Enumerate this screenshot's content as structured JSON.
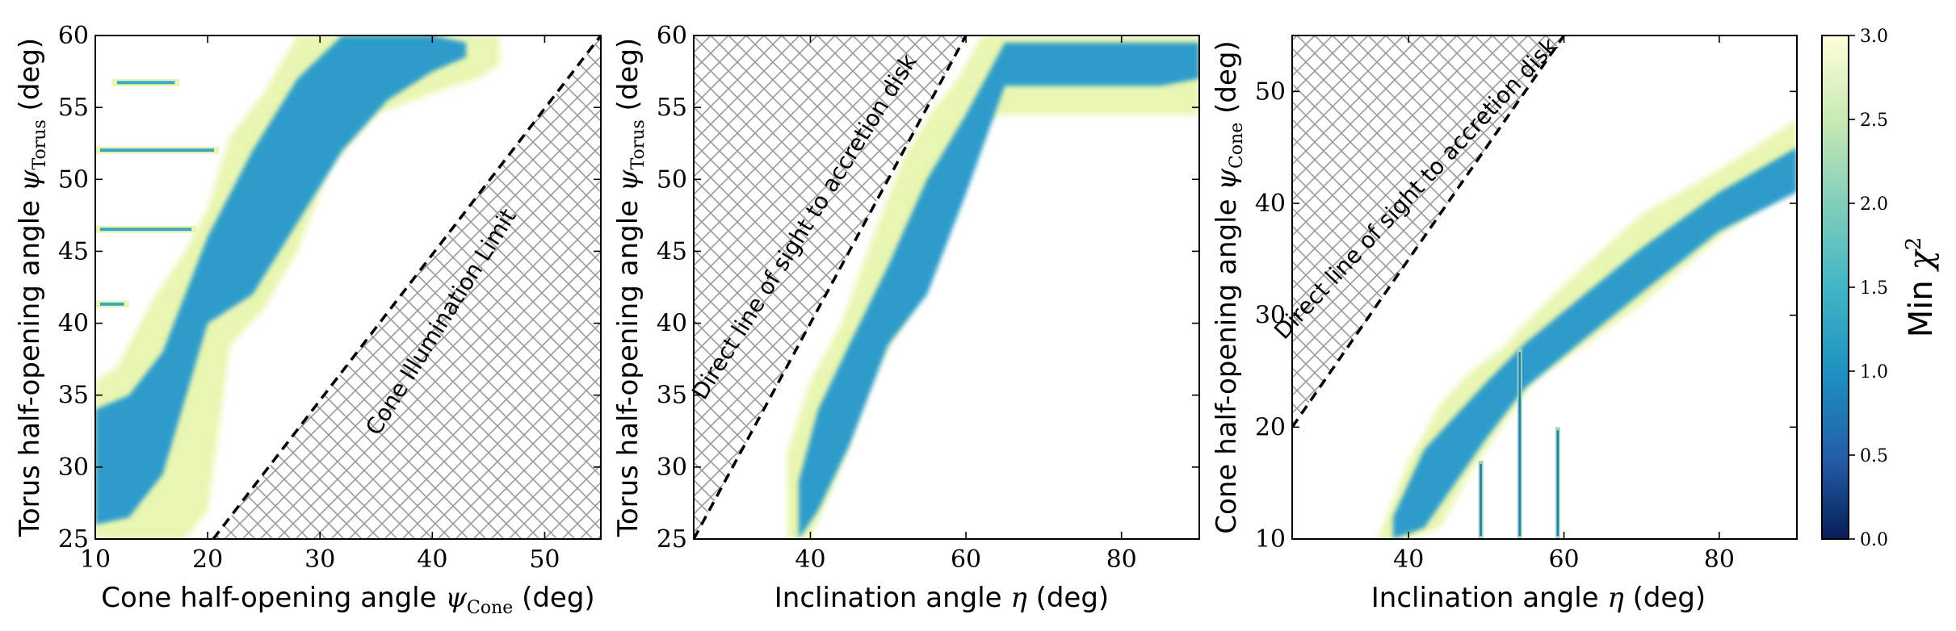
{
  "chart_data": [
    {
      "type": "heatmap",
      "xlabel": "Cone half-opening angle ψ_Cone (deg)",
      "ylabel": "Torus half-opening angle ψ_Torus (deg)",
      "xlim": [
        10,
        55
      ],
      "ylim": [
        25,
        60
      ],
      "xticks": [
        "10",
        "20",
        "30",
        "40",
        "50"
      ],
      "yticks": [
        "25",
        "30",
        "35",
        "40",
        "45",
        "50",
        "55",
        "60"
      ],
      "excluded_region": {
        "label": "Cone Illumination Limit",
        "boundary": [
          [
            20.5,
            25
          ],
          [
            55,
            60
          ]
        ],
        "side": "lower-right",
        "line_style": "dashed"
      },
      "band": {
        "x": [
          10.0,
          12.0,
          15.0,
          18.0,
          20.0,
          22.0,
          25.0,
          28.0,
          31.0,
          35.0,
          40.0,
          44.0,
          46.0
        ],
        "lower": [
          25.0,
          25.0,
          25.0,
          25.0,
          27.0,
          38.5,
          41.0,
          45.0,
          51.0,
          54.5,
          56.0,
          57.0,
          58.0
        ],
        "upper": [
          36.0,
          37.0,
          41.5,
          45.0,
          48.0,
          53.0,
          56.0,
          60.0,
          60.0,
          60.0,
          60.0,
          60.0,
          60.0
        ]
      },
      "min_region": {
        "x": [
          10.0,
          13.0,
          16.0,
          20.0,
          24.0,
          28.0,
          32.0,
          36.0,
          40.0,
          43.0
        ],
        "lower": [
          26.0,
          26.5,
          29.5,
          40.0,
          42.0,
          47.0,
          52.0,
          55.5,
          57.5,
          58.5
        ],
        "upper": [
          34.0,
          35.0,
          38.0,
          46.0,
          52.0,
          57.0,
          60.0,
          60.0,
          60.0,
          59.5
        ]
      },
      "stripes": [
        {
          "x0": 11.5,
          "x1": 17.5,
          "y": 56.7
        },
        {
          "x0": 10,
          "x1": 21,
          "y": 52.0
        },
        {
          "x0": 10,
          "x1": 19,
          "y": 46.5
        },
        {
          "x0": 10,
          "x1": 13,
          "y": 41.3
        }
      ]
    },
    {
      "type": "heatmap",
      "xlabel": "Inclination angle η (deg)",
      "ylabel": "Torus half-opening angle ψ_Torus (deg)",
      "xlim": [
        25,
        90
      ],
      "ylim": [
        25,
        60
      ],
      "xticks": [
        "40",
        "60",
        "80"
      ],
      "yticks": [
        "25",
        "30",
        "35",
        "40",
        "45",
        "50",
        "55",
        "60"
      ],
      "excluded_region": {
        "label": "Direct line of sight to accretion disk",
        "boundary": [
          [
            25,
            25
          ],
          [
            60,
            60
          ]
        ],
        "side": "upper-left",
        "line_style": "dashed"
      },
      "band": {
        "x": [
          37.0,
          40.0,
          44.0,
          48.0,
          52.0,
          56.0,
          59.0,
          62.0,
          64.0,
          70.0,
          80.0,
          90.0
        ],
        "lower": [
          25.0,
          25.0,
          30.0,
          36.5,
          40.0,
          46.0,
          50.0,
          54.0,
          54.5,
          54.5,
          54.5,
          54.5
        ],
        "upper": [
          31.0,
          36.0,
          40.0,
          46.0,
          51.5,
          55.0,
          57.0,
          60.0,
          60.0,
          60.0,
          60.0,
          60.0
        ]
      },
      "min_region": {
        "x": [
          38.5,
          41.0,
          45.0,
          50.0,
          55.0,
          60.0,
          65.0,
          75.0,
          85.0,
          90.0
        ],
        "lower": [
          25.0,
          27.0,
          31.5,
          38.5,
          42.0,
          49.0,
          56.5,
          56.5,
          56.5,
          57.0
        ],
        "upper": [
          29.0,
          34.0,
          38.5,
          44.0,
          50.0,
          54.5,
          59.5,
          59.5,
          59.5,
          59.5
        ]
      },
      "stripes": []
    },
    {
      "type": "heatmap",
      "xlabel": "Inclination angle η (deg)",
      "ylabel": "Cone half-opening angle ψ_Cone (deg)",
      "xlim": [
        25,
        90
      ],
      "ylim": [
        10,
        55
      ],
      "xticks": [
        "40",
        "60",
        "80"
      ],
      "yticks": [
        "10",
        "20",
        "30",
        "40",
        "50"
      ],
      "excluded_region": {
        "label": "Direct line of sight to accretion disk",
        "boundary": [
          [
            25,
            20
          ],
          [
            60,
            55
          ]
        ],
        "side": "upper-left",
        "line_style": "dashed"
      },
      "band": {
        "x": [
          36.0,
          40.0,
          44.0,
          48.0,
          52.0,
          56.0,
          62.0,
          70.0,
          80.0,
          90.0
        ],
        "lower": [
          10.0,
          10.0,
          11.0,
          16.0,
          20.0,
          24.0,
          27.0,
          31.0,
          37.0,
          42.0
        ],
        "upper": [
          10.0,
          17.0,
          22.0,
          25.0,
          27.0,
          30.0,
          34.0,
          39.0,
          43.0,
          47.5
        ]
      },
      "min_region": {
        "x": [
          38.0,
          42.0,
          46.0,
          50.0,
          55.0,
          62.0,
          70.0,
          80.0,
          90.0
        ],
        "lower": [
          10.0,
          11.0,
          15.0,
          19.0,
          23.5,
          27.5,
          32.0,
          37.5,
          41.0
        ],
        "upper": [
          12.0,
          18.0,
          21.0,
          24.0,
          27.5,
          31.5,
          36.0,
          41.0,
          45.0
        ]
      },
      "stripes": [
        {
          "x": 49.3,
          "y0": 10,
          "y1": 17
        },
        {
          "x": 54.3,
          "y0": 10,
          "y1": 27
        },
        {
          "x": 59.2,
          "y0": 10,
          "y1": 20
        }
      ]
    }
  ],
  "colorbar": {
    "label": "Min χ²",
    "range": [
      0.0,
      3.0
    ],
    "ticks": [
      "0.0",
      "0.5",
      "1.0",
      "1.5",
      "2.0",
      "2.5",
      "3.0"
    ],
    "colormap": "YlGnBu_r",
    "colors": [
      "#081d58",
      "#225ea8",
      "#1d91c0",
      "#41b6c4",
      "#7fcdbb",
      "#c7e9b4",
      "#ffffd9"
    ]
  }
}
